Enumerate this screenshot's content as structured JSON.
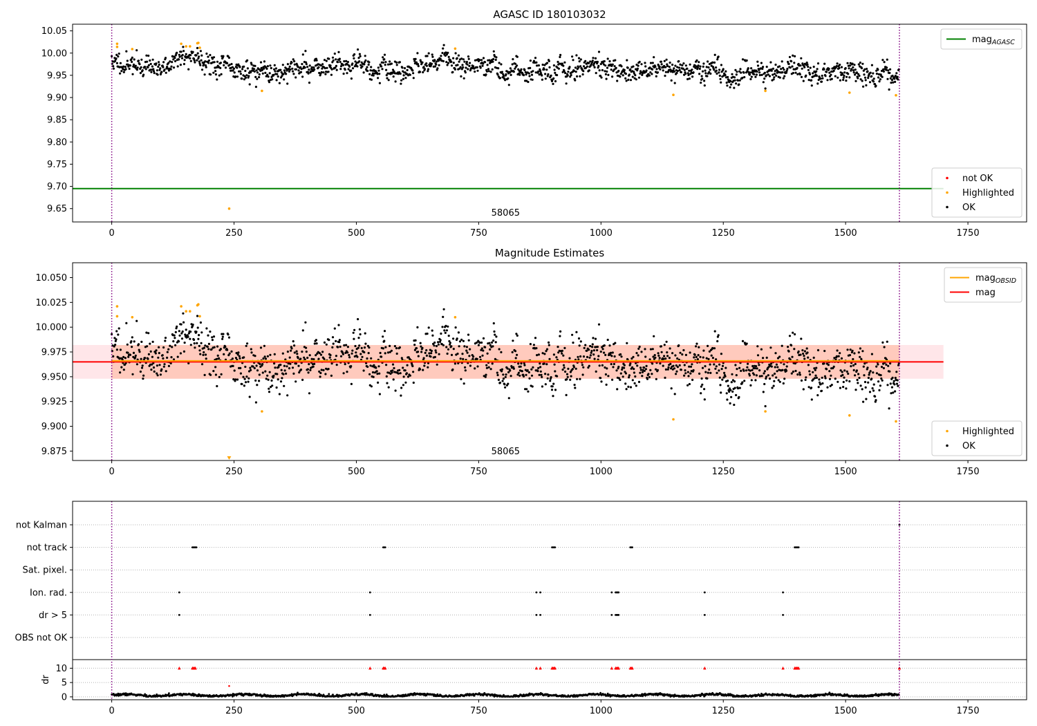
{
  "chart_data": [
    {
      "type": "scatter",
      "title": "AGASC ID 180103032",
      "xlim": [
        -80,
        1870
      ],
      "ylim": [
        9.62,
        10.065
      ],
      "xticks": [
        0,
        250,
        500,
        750,
        1000,
        1250,
        1500,
        1750
      ],
      "yticks": [
        9.65,
        9.7,
        9.75,
        9.8,
        9.85,
        9.9,
        9.95,
        10.0,
        10.05
      ],
      "ytick_decimals": 2,
      "vlines": [
        0,
        1610
      ],
      "annotation": {
        "text": "58065",
        "x": 805
      },
      "hlines": [
        {
          "name": "mag_AGASC",
          "label_main": "mag",
          "label_sub": "AGASC",
          "y": 9.695,
          "x0": -80,
          "x1": 1700,
          "color": "#008000"
        }
      ],
      "legends": [
        {
          "position": "top-right",
          "entries": [
            {
              "kind": "line",
              "label": "mag",
              "sub": "AGASC",
              "color": "#008000"
            }
          ]
        },
        {
          "position": "bottom-right",
          "entries": [
            {
              "kind": "dot",
              "label": "not OK",
              "color": "#ff0000"
            },
            {
              "kind": "dot",
              "label": "Highlighted",
              "color": "#ffa500"
            },
            {
              "kind": "dot",
              "label": "OK",
              "color": "#000000"
            }
          ]
        }
      ],
      "series": [
        {
          "name": "OK",
          "color": "#000000",
          "gen": {
            "n": 1610,
            "x0": 0,
            "x1": 1610,
            "base": 9.966,
            "noise": 0.0145,
            "seed": 11,
            "trend": [
              [
                0,
                9.98
              ],
              [
                60,
                9.972
              ],
              [
                100,
                9.966
              ],
              [
                150,
                9.992
              ],
              [
                180,
                9.993
              ],
              [
                220,
                9.97
              ],
              [
                300,
                9.957
              ],
              [
                400,
                9.966
              ],
              [
                500,
                9.975
              ],
              [
                560,
                9.958
              ],
              [
                650,
                9.975
              ],
              [
                700,
                9.978
              ],
              [
                800,
                9.96
              ],
              [
                950,
                9.968
              ],
              [
                1000,
                9.972
              ],
              [
                1050,
                9.955
              ],
              [
                1120,
                9.96
              ],
              [
                1180,
                9.968
              ],
              [
                1250,
                9.952
              ],
              [
                1350,
                9.955
              ],
              [
                1400,
                9.968
              ],
              [
                1500,
                9.958
              ],
              [
                1610,
                9.948
              ]
            ]
          }
        },
        {
          "name": "Highlighted",
          "color": "#ffa500",
          "points": [
            [
              11,
              10.021
            ],
            [
              11,
              10.014
            ],
            [
              42,
              10.009
            ],
            [
              142,
              10.021
            ],
            [
              152,
              10.015
            ],
            [
              160,
              10.015
            ],
            [
              175,
              10.022
            ],
            [
              177,
              10.023
            ],
            [
              180,
              10.012
            ],
            [
              240,
              9.65
            ],
            [
              307,
              9.915
            ],
            [
              702,
              10.01
            ],
            [
              1148,
              9.906
            ],
            [
              1336,
              9.915
            ],
            [
              1508,
              9.911
            ],
            [
              1603,
              9.905
            ]
          ]
        },
        {
          "name": "not OK",
          "color": "#ff0000",
          "points": []
        }
      ]
    },
    {
      "type": "scatter",
      "title": "Magnitude Estimates",
      "xlim": [
        -80,
        1870
      ],
      "ylim": [
        9.8655,
        10.065
      ],
      "xticks": [
        0,
        250,
        500,
        750,
        1000,
        1250,
        1500,
        1750
      ],
      "yticks": [
        9.875,
        9.9,
        9.925,
        9.95,
        9.975,
        10.0,
        10.025,
        10.05
      ],
      "ytick_decimals": 3,
      "vlines": [
        0,
        1610
      ],
      "annotation": {
        "text": "58065",
        "x": 805
      },
      "bands": [
        {
          "name": "mag band",
          "x0": -80,
          "x1": 1700,
          "y0": 9.948,
          "y1": 9.982,
          "color": "#ffb6c1",
          "opacity": 0.35
        },
        {
          "name": "mag OBSID band",
          "x0": 0,
          "x1": 1610,
          "y0": 9.948,
          "y1": 9.982,
          "color": "#ffa07a",
          "opacity": 0.4
        }
      ],
      "hlines": [
        {
          "name": "mag",
          "y": 9.965,
          "x0": -80,
          "x1": 1700,
          "color": "#ff0000"
        },
        {
          "name": "mag_OBSID",
          "y": 9.966,
          "x0": 0,
          "x1": 1610,
          "color": "#ffa500"
        }
      ],
      "legends": [
        {
          "position": "top-right",
          "entries": [
            {
              "kind": "line",
              "label": "mag",
              "sub": "OBSID",
              "color": "#ffa500"
            },
            {
              "kind": "line",
              "label": "mag",
              "sub": "",
              "color": "#ff0000"
            }
          ]
        },
        {
          "position": "bottom-right",
          "entries": [
            {
              "kind": "dot",
              "label": "Highlighted",
              "color": "#ffa500"
            },
            {
              "kind": "dot",
              "label": "OK",
              "color": "#000000"
            }
          ]
        }
      ],
      "series": [
        {
          "name": "OK",
          "color": "#000000",
          "gen_ref": 0
        },
        {
          "name": "Highlighted",
          "color": "#ffa500",
          "points": [
            [
              11,
              10.021
            ],
            [
              11,
              10.011
            ],
            [
              42,
              10.01
            ],
            [
              142,
              10.021
            ],
            [
              152,
              10.016
            ],
            [
              160,
              10.016
            ],
            [
              175,
              10.022
            ],
            [
              177,
              10.023
            ],
            [
              180,
              10.011
            ],
            [
              702,
              10.01
            ],
            [
              307,
              9.915
            ],
            [
              1148,
              9.907
            ],
            [
              1336,
              9.915
            ],
            [
              1508,
              9.911
            ],
            [
              1603,
              9.905
            ]
          ]
        },
        {
          "name": "Highlighted (clipped)",
          "color": "#ffa500",
          "marker": "triangle-down",
          "points": [
            [
              240,
              9.867
            ]
          ]
        }
      ]
    },
    {
      "type": "scatter",
      "title": "",
      "xlim": [
        -80,
        1870
      ],
      "xticks": [
        0,
        250,
        500,
        750,
        1000,
        1250,
        1500,
        1750
      ],
      "vlines": [
        0,
        1610
      ],
      "flag_rows": [
        "not Kalman",
        "not track",
        "Sat. pixel.",
        "Ion. rad.",
        "dr > 5",
        "OBS not OK"
      ],
      "flags": {
        "not Kalman": [
          1610
        ],
        "not track": [
          165,
          167,
          169,
          171,
          173,
          555,
          557,
          559,
          900,
          902,
          904,
          906,
          1060,
          1062,
          1064,
          1396,
          1398,
          1400,
          1402,
          1404
        ],
        "Sat. pixel.": [],
        "Ion. rad.": [
          138,
          528,
          868,
          876,
          1022,
          1030,
          1032,
          1034,
          1036,
          1212,
          1372
        ],
        "dr > 5": [
          138,
          528,
          868,
          876,
          1022,
          1030,
          1032,
          1034,
          1036,
          1212,
          1372
        ],
        "OBS not OK": []
      },
      "dr": {
        "ylabel": "dr",
        "ylim": [
          -1,
          13
        ],
        "yticks": [
          0,
          5,
          10
        ],
        "clip_value": 10,
        "clipped_x": [
          138,
          165,
          167,
          169,
          171,
          528,
          555,
          557,
          559,
          868,
          876,
          900,
          902,
          904,
          906,
          1022,
          1030,
          1032,
          1034,
          1036,
          1060,
          1062,
          1064,
          1212,
          1372,
          1396,
          1398,
          1400,
          1402,
          1404,
          1610
        ],
        "outliers": [
          [
            240,
            3.8
          ]
        ],
        "gen": {
          "n": 1610,
          "x0": 0,
          "x1": 1610,
          "base": 0.55,
          "amp": 0.35,
          "period": 120,
          "noise": 0.2,
          "seed": 7
        }
      }
    }
  ]
}
